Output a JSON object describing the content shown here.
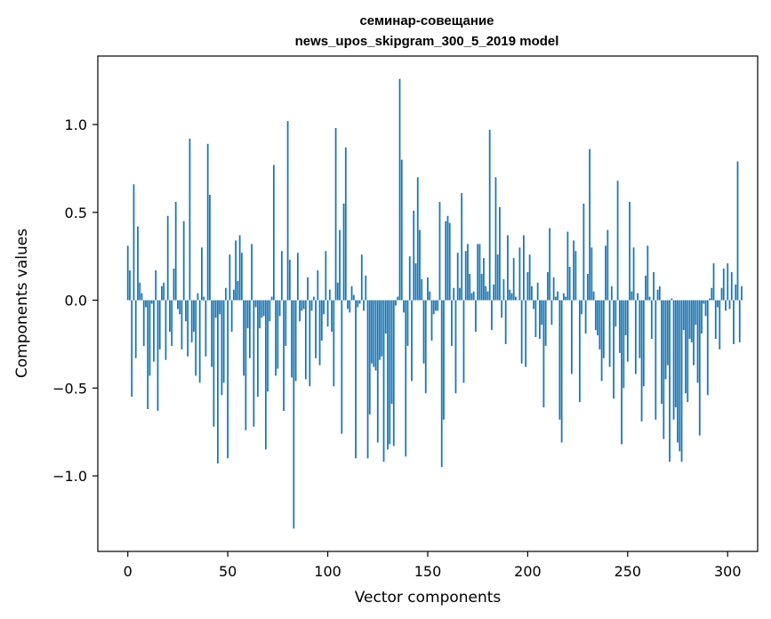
{
  "chart_data": {
    "type": "bar",
    "title": "семинар-совещание",
    "subtitle": "news_upos_skipgram_300_5_2019 model",
    "xlabel": "Vector components",
    "ylabel": "Components values",
    "xlim": [
      -15,
      315
    ],
    "ylim": [
      -1.43,
      1.39
    ],
    "xticks": [
      0,
      50,
      100,
      150,
      200,
      250,
      300
    ],
    "xtick_labels": [
      "0",
      "50",
      "100",
      "150",
      "200",
      "250",
      "300"
    ],
    "yticks": [
      -1.0,
      -0.5,
      0.0,
      0.5,
      1.0
    ],
    "ytick_labels": [
      "−1.0",
      "−0.5",
      "0.0",
      "0.5",
      "1.0"
    ],
    "bar_color": "#1f77b4",
    "values": [
      0.31,
      0.17,
      -0.55,
      0.66,
      -0.33,
      0.42,
      0.1,
      0.04,
      -0.26,
      -0.04,
      -0.62,
      -0.43,
      -0.02,
      -0.35,
      0.17,
      -0.63,
      -0.28,
      0.08,
      0.1,
      -0.34,
      0.48,
      -0.18,
      -0.26,
      0.18,
      0.56,
      -0.05,
      -0.08,
      -0.28,
      0.45,
      -0.12,
      -0.32,
      0.92,
      -0.24,
      -0.18,
      -0.43,
      0.04,
      -0.47,
      0.3,
      0.02,
      -0.32,
      0.89,
      0.6,
      -0.38,
      -0.72,
      -0.1,
      -0.93,
      -0.08,
      -0.54,
      -0.47,
      0.07,
      -0.9,
      0.26,
      -0.18,
      0.06,
      0.34,
      0.11,
      0.37,
      0.27,
      -0.43,
      -0.74,
      -0.16,
      -0.33,
      0.32,
      -0.72,
      -0.04,
      -0.55,
      -0.16,
      -0.1,
      -0.09,
      -0.85,
      -0.52,
      -0.12,
      0.02,
      0.77,
      -0.43,
      -0.39,
      -0.09,
      0.28,
      -0.63,
      -0.26,
      1.02,
      0.23,
      -0.44,
      -1.3,
      -0.46,
      0.27,
      -0.12,
      -0.06,
      -0.05,
      -0.45,
      0.13,
      -0.49,
      -0.06,
      0.02,
      -0.33,
      0.17,
      -0.37,
      -0.23,
      -0.08,
      0.28,
      -0.15,
      0.06,
      -0.18,
      -0.49,
      0.98,
      0.1,
      0.4,
      -0.76,
      0.55,
      0.87,
      -0.05,
      -0.07,
      0.08,
      0.03,
      -0.9,
      -0.04,
      -0.02,
      0.26,
      -0.06,
      0.14,
      -0.9,
      -0.65,
      -0.36,
      -0.38,
      -0.4,
      -0.81,
      -0.34,
      -0.32,
      -0.92,
      -0.19,
      -0.85,
      -0.82,
      -0.59,
      -0.83,
      -0.03,
      0.02,
      1.26,
      0.8,
      -0.07,
      -0.89,
      -0.26,
      0.25,
      -0.46,
      0.51,
      0.21,
      0.7,
      0.4,
      0.12,
      -0.36,
      -0.53,
      0.13,
      0.05,
      -0.23,
      -0.08,
      -0.06,
      -0.06,
      0.56,
      -0.95,
      -0.68,
      0.45,
      0.48,
      0.44,
      -0.26,
      0.07,
      -0.53,
      0.27,
      0.07,
      0.61,
      -0.47,
      0.28,
      0.32,
      0.15,
      0.04,
      0.05,
      -0.18,
      0.32,
      0.32,
      0.15,
      0.24,
      0.08,
      0.05,
      0.97,
      -0.17,
      0.09,
      0.7,
      0.26,
      0.53,
      -0.1,
      0.12,
      -0.25,
      0.37,
      0.06,
      0.04,
      0.24,
      0.02,
      0.0,
      0.3,
      -0.36,
      0.37,
      -0.38,
      0.16,
      0.26,
      0.08,
      -0.05,
      -0.21,
      0.1,
      -0.22,
      -0.14,
      -0.61,
      -0.26,
      0.16,
      0.41,
      -0.14,
      0.13,
      0.02,
      0.05,
      -0.68,
      -0.81,
      0.04,
      0.02,
      0.39,
      0.19,
      -0.42,
      0.34,
      0.28,
      0.0,
      -0.58,
      -0.08,
      0.55,
      -0.19,
      0.15,
      0.86,
      0.3,
      0.05,
      -0.17,
      -0.2,
      -0.28,
      -0.46,
      -0.33,
      0.31,
      0.4,
      -0.38,
      0.08,
      -0.56,
      -0.15,
      0.68,
      -0.3,
      -0.82,
      -0.5,
      -0.2,
      -0.35,
      0.56,
      0.05,
      0.3,
      -0.42,
      0.04,
      -0.33,
      -0.69,
      -0.49,
      0.14,
      0.31,
      0.02,
      -0.22,
      0.16,
      -0.68,
      0.06,
      0.08,
      -0.59,
      -0.79,
      -0.45,
      -0.37,
      -0.92,
      0.01,
      -0.68,
      -0.61,
      -0.81,
      -0.86,
      -0.92,
      -0.17,
      -0.53,
      -0.58,
      -0.22,
      -0.24,
      -0.37,
      -0.14,
      -0.47,
      -0.77,
      -0.19,
      -0.02,
      -0.09,
      -0.54,
      0.01,
      0.07,
      0.21,
      -0.22,
      -0.04,
      -0.28,
      0.07,
      0.18,
      -0.06,
      0.21,
      -0.05,
      0.16,
      -0.25,
      0.09,
      0.79,
      -0.24,
      0.08
    ]
  }
}
